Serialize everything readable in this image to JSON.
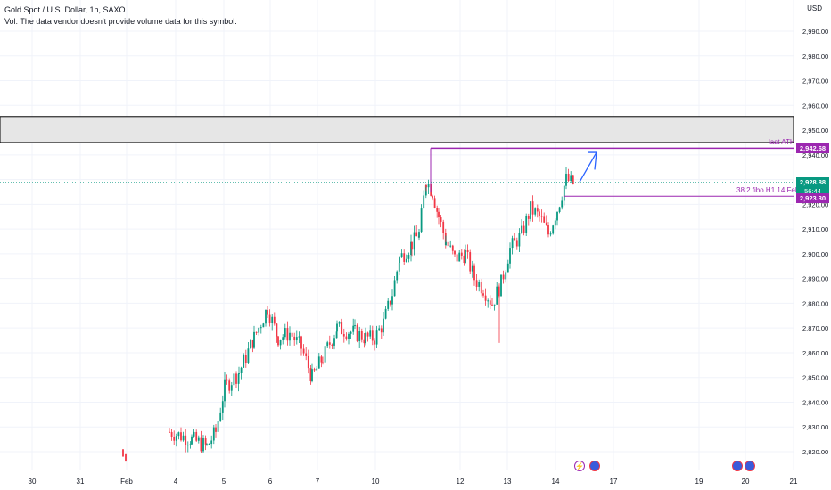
{
  "legend": {
    "symbol_line": "Gold Spot / U.S. Dollar, 1h, SAXO",
    "volume_line": "Vol: The data vendor doesn't provide volume data for this symbol."
  },
  "price_axis": {
    "currency": "USD",
    "ticks": [
      "2,990.00",
      "2,980.00",
      "2,970.00",
      "2,960.00",
      "2,950.00",
      "2,940.00",
      "2,930.00",
      "2,920.00",
      "2,910.00",
      "2,900.00",
      "2,890.00",
      "2,880.00",
      "2,870.00",
      "2,860.00",
      "2,850.00",
      "2,840.00",
      "2,830.00",
      "2,820.00"
    ]
  },
  "time_axis": {
    "ticks": [
      "30",
      "31",
      "Feb",
      "4",
      "5",
      "6",
      "7",
      "10",
      "12",
      "13",
      "14",
      "17",
      "19",
      "20",
      "21"
    ]
  },
  "price_tags": {
    "ath": {
      "label": "2,942.68",
      "color": "#9c27b0"
    },
    "current": {
      "label": "2,928.88",
      "countdown": "56:44",
      "color": "#089981"
    },
    "fibo": {
      "label": "2,923.30",
      "color": "#9c27b0"
    }
  },
  "annotations": {
    "last_ath": "last ATH",
    "fibo": "38.2 fibo H1 14 Feb"
  },
  "colors": {
    "up": "#089981",
    "down": "#f23645",
    "drawing": "#9c27b0",
    "arrow": "#2962ff",
    "zone": "#e0e0e0"
  },
  "chart_data": {
    "type": "candlestick",
    "ylim": [
      2815,
      2998
    ],
    "zone": [
      2945,
      2955.5
    ],
    "levels": {
      "ath": 2942.68,
      "fibo": 2923.3,
      "current": 2928.88
    },
    "anchor_points": [
      {
        "x": 190,
        "p": 2828
      },
      {
        "x": 215,
        "p": 2825
      },
      {
        "x": 232,
        "p": 2822
      },
      {
        "x": 242,
        "p": 2828
      },
      {
        "x": 252,
        "p": 2846
      },
      {
        "x": 268,
        "p": 2852
      },
      {
        "x": 285,
        "p": 2866
      },
      {
        "x": 300,
        "p": 2878
      },
      {
        "x": 312,
        "p": 2866
      },
      {
        "x": 325,
        "p": 2868
      },
      {
        "x": 338,
        "p": 2862
      },
      {
        "x": 350,
        "p": 2850
      },
      {
        "x": 362,
        "p": 2858
      },
      {
        "x": 378,
        "p": 2870
      },
      {
        "x": 398,
        "p": 2868
      },
      {
        "x": 410,
        "p": 2866
      },
      {
        "x": 420,
        "p": 2866
      },
      {
        "x": 430,
        "p": 2872
      },
      {
        "x": 440,
        "p": 2884
      },
      {
        "x": 448,
        "p": 2898
      },
      {
        "x": 462,
        "p": 2904
      },
      {
        "x": 470,
        "p": 2908
      },
      {
        "x": 478,
        "p": 2930
      },
      {
        "x": 485,
        "p": 2925
      },
      {
        "x": 492,
        "p": 2915
      },
      {
        "x": 500,
        "p": 2905
      },
      {
        "x": 510,
        "p": 2898
      },
      {
        "x": 522,
        "p": 2900
      },
      {
        "x": 532,
        "p": 2890
      },
      {
        "x": 542,
        "p": 2886
      },
      {
        "x": 552,
        "p": 2880
      },
      {
        "x": 562,
        "p": 2888
      },
      {
        "x": 572,
        "p": 2902
      },
      {
        "x": 585,
        "p": 2908
      },
      {
        "x": 595,
        "p": 2918
      },
      {
        "x": 605,
        "p": 2915
      },
      {
        "x": 615,
        "p": 2908
      },
      {
        "x": 625,
        "p": 2918
      },
      {
        "x": 635,
        "p": 2930
      },
      {
        "x": 645,
        "p": 2928
      }
    ]
  }
}
